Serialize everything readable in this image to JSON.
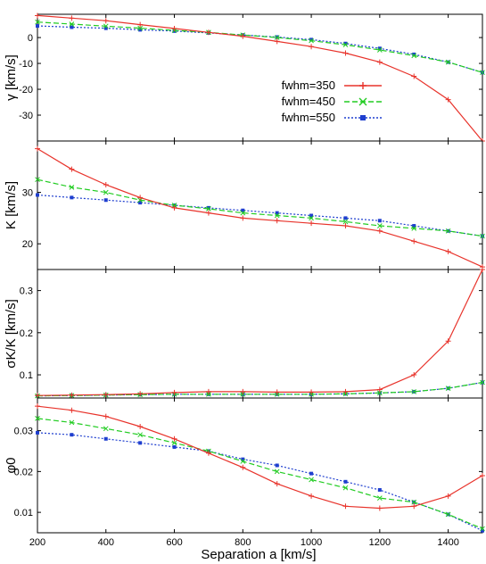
{
  "figure": {
    "xlabel": "Separation a [km/s]",
    "x_ticks": [
      200,
      400,
      600,
      800,
      1000,
      1200,
      1400
    ],
    "legend": {
      "placement": "inside top-right of first panel",
      "entries": [
        "fwhm=350",
        "fwhm=450",
        "fwhm=550"
      ]
    },
    "series_colors": {
      "fwhm=350": "#e8332b",
      "fwhm=450": "#22cc22",
      "fwhm=550": "#1f3fcf"
    }
  },
  "chart_data": [
    {
      "type": "line",
      "ylabel": "γ [km/s]",
      "xlim": [
        200,
        1500
      ],
      "ylim": [
        -40,
        9
      ],
      "y_ticks": [
        0,
        -10,
        -20,
        -30
      ],
      "x": [
        200,
        300,
        400,
        500,
        600,
        700,
        800,
        900,
        1000,
        1100,
        1200,
        1300,
        1400,
        1500
      ],
      "series": [
        {
          "name": "fwhm=350",
          "values": [
            8.5,
            7.5,
            6.5,
            5.0,
            3.5,
            2.0,
            0.5,
            -1.5,
            -3.5,
            -6.0,
            -9.5,
            -15.0,
            -24.0,
            -40.0
          ]
        },
        {
          "name": "fwhm=450",
          "values": [
            6.0,
            5.2,
            4.4,
            3.6,
            2.8,
            2.0,
            1.0,
            0.0,
            -1.2,
            -2.8,
            -4.8,
            -7.0,
            -9.5,
            -13.5
          ]
        },
        {
          "name": "fwhm=550",
          "values": [
            4.5,
            4.0,
            3.6,
            3.0,
            2.5,
            1.8,
            1.0,
            0.2,
            -0.8,
            -2.3,
            -4.2,
            -6.5,
            -9.5,
            -13.5
          ]
        }
      ]
    },
    {
      "type": "line",
      "ylabel": "K [km/s]",
      "xlim": [
        200,
        1500
      ],
      "ylim": [
        15,
        40
      ],
      "y_ticks": [
        20,
        30
      ],
      "x": [
        200,
        300,
        400,
        500,
        600,
        700,
        800,
        900,
        1000,
        1100,
        1200,
        1300,
        1400,
        1500
      ],
      "series": [
        {
          "name": "fwhm=350",
          "values": [
            38.5,
            34.5,
            31.5,
            29.0,
            27.0,
            26.0,
            25.0,
            24.5,
            24.0,
            23.5,
            22.5,
            20.5,
            18.5,
            15.5
          ]
        },
        {
          "name": "fwhm=450",
          "values": [
            32.5,
            31.0,
            30.0,
            28.5,
            27.5,
            26.8,
            26.0,
            25.5,
            25.0,
            24.3,
            23.5,
            23.0,
            22.5,
            21.5
          ]
        },
        {
          "name": "fwhm=550",
          "values": [
            29.5,
            29.0,
            28.5,
            28.0,
            27.5,
            27.0,
            26.5,
            26.0,
            25.5,
            25.0,
            24.5,
            23.5,
            22.5,
            21.5
          ]
        }
      ]
    },
    {
      "type": "line",
      "ylabel": "σK/K [km/s]",
      "xlim": [
        200,
        1500
      ],
      "ylim": [
        0.045,
        0.35
      ],
      "y_ticks": [
        0.1,
        0.2,
        0.3
      ],
      "x": [
        200,
        300,
        400,
        500,
        600,
        700,
        800,
        900,
        1000,
        1100,
        1200,
        1300,
        1400,
        1500
      ],
      "series": [
        {
          "name": "fwhm=350",
          "values": [
            0.051,
            0.052,
            0.053,
            0.055,
            0.058,
            0.06,
            0.06,
            0.059,
            0.059,
            0.06,
            0.065,
            0.1,
            0.18,
            0.35
          ]
        },
        {
          "name": "fwhm=450",
          "values": [
            0.05,
            0.051,
            0.052,
            0.053,
            0.054,
            0.054,
            0.054,
            0.054,
            0.054,
            0.055,
            0.057,
            0.06,
            0.068,
            0.082
          ]
        },
        {
          "name": "fwhm=550",
          "values": [
            0.05,
            0.051,
            0.052,
            0.053,
            0.054,
            0.054,
            0.054,
            0.054,
            0.054,
            0.055,
            0.057,
            0.06,
            0.068,
            0.082
          ]
        }
      ]
    },
    {
      "type": "line",
      "ylabel": "φ0",
      "xlim": [
        200,
        1500
      ],
      "ylim": [
        0.005,
        0.038
      ],
      "y_ticks": [
        0.01,
        0.02,
        0.03
      ],
      "x": [
        200,
        300,
        400,
        500,
        600,
        700,
        800,
        900,
        1000,
        1100,
        1200,
        1300,
        1400,
        1500
      ],
      "series": [
        {
          "name": "fwhm=350",
          "values": [
            0.036,
            0.035,
            0.0335,
            0.031,
            0.028,
            0.0245,
            0.021,
            0.017,
            0.014,
            0.0115,
            0.011,
            0.0115,
            0.014,
            0.019
          ]
        },
        {
          "name": "fwhm=450",
          "values": [
            0.033,
            0.032,
            0.0305,
            0.029,
            0.027,
            0.025,
            0.0225,
            0.02,
            0.018,
            0.016,
            0.0135,
            0.0125,
            0.0095,
            0.006
          ]
        },
        {
          "name": "fwhm=550",
          "values": [
            0.0295,
            0.029,
            0.028,
            0.027,
            0.026,
            0.025,
            0.023,
            0.0215,
            0.0195,
            0.0175,
            0.0155,
            0.0125,
            0.0095,
            0.0055
          ]
        }
      ]
    }
  ]
}
